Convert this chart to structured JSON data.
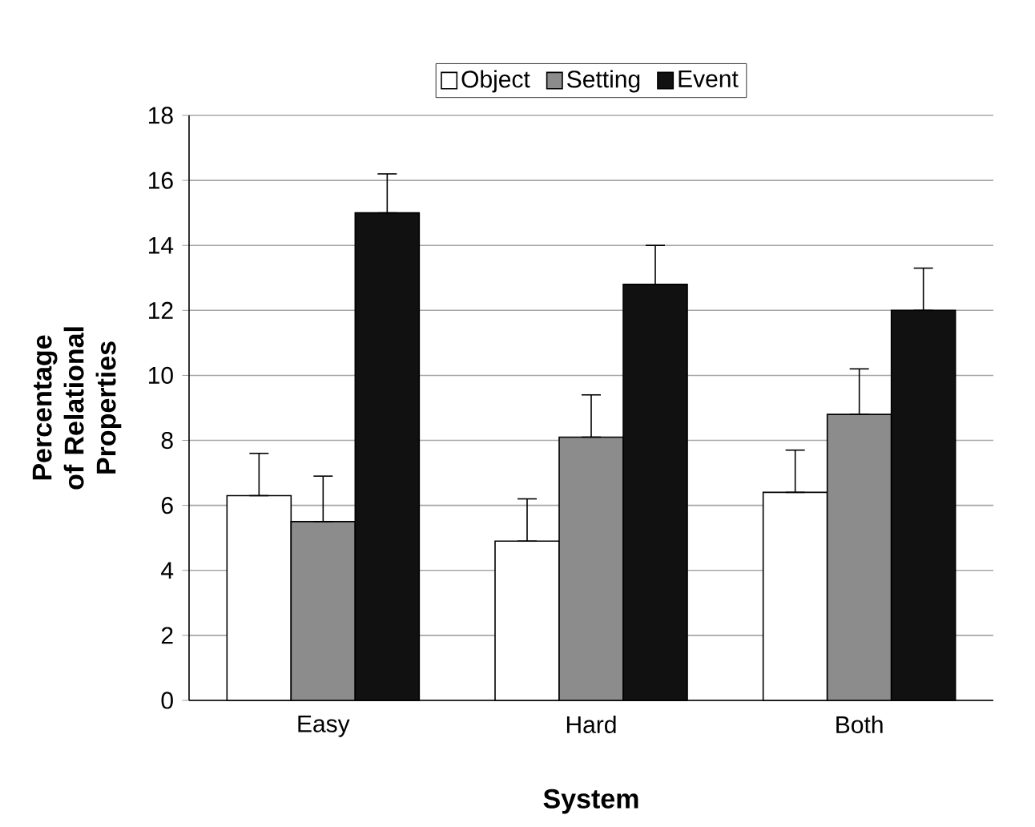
{
  "chart_data": {
    "type": "bar",
    "xlabel": "System",
    "ylabel": "Percentage of Relational Properties",
    "categories": [
      "Easy",
      "Hard",
      "Both"
    ],
    "series": [
      {
        "name": "Object",
        "color": "#ffffff",
        "values": [
          6.3,
          4.9,
          6.4
        ],
        "errors": [
          [
            6.3,
            7.6
          ],
          [
            4.9,
            6.2
          ],
          [
            6.4,
            7.7
          ]
        ]
      },
      {
        "name": "Setting",
        "color": "#8c8c8c",
        "values": [
          5.5,
          8.1,
          8.8
        ],
        "errors": [
          [
            5.5,
            6.9
          ],
          [
            8.1,
            9.4
          ],
          [
            8.8,
            10.2
          ]
        ]
      },
      {
        "name": "Event",
        "color": "#111111",
        "values": [
          15.0,
          12.8,
          12.0
        ],
        "errors": [
          [
            15.0,
            16.2
          ],
          [
            12.8,
            14.0
          ],
          [
            12.0,
            13.3
          ]
        ]
      }
    ],
    "ylim": [
      0,
      18
    ],
    "yticks": [
      0,
      2,
      4,
      6,
      8,
      10,
      12,
      14,
      16,
      18
    ],
    "grid": "y",
    "legend": "top"
  }
}
